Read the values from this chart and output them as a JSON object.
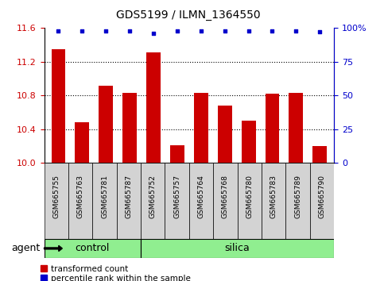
{
  "title": "GDS5199 / ILMN_1364550",
  "samples": [
    "GSM665755",
    "GSM665763",
    "GSM665781",
    "GSM665787",
    "GSM665752",
    "GSM665757",
    "GSM665764",
    "GSM665768",
    "GSM665780",
    "GSM665783",
    "GSM665789",
    "GSM665790"
  ],
  "transformed_counts": [
    11.35,
    10.48,
    10.92,
    10.83,
    11.31,
    10.21,
    10.83,
    10.68,
    10.5,
    10.82,
    10.83,
    10.2
  ],
  "percentile_ranks": [
    98,
    98,
    98,
    98,
    96,
    98,
    98,
    98,
    98,
    98,
    98,
    97
  ],
  "bar_color": "#cc0000",
  "dot_color": "#0000cc",
  "ylim_left": [
    10.0,
    11.6
  ],
  "ylim_right": [
    0,
    100
  ],
  "yticks_left": [
    10.0,
    10.4,
    10.8,
    11.2,
    11.6
  ],
  "yticks_right": [
    0,
    25,
    50,
    75,
    100
  ],
  "ytick_labels_right": [
    "0",
    "25",
    "50",
    "75",
    "100%"
  ],
  "grid_lines": [
    10.4,
    10.8,
    11.2
  ],
  "control_samples": 4,
  "control_label": "control",
  "silica_label": "silica",
  "agent_label": "agent",
  "legend_bar_label": "transformed count",
  "legend_dot_label": "percentile rank within the sample",
  "group_bg_light": "#d3d3d3",
  "group_bg_green": "#90ee90",
  "bar_width": 0.6
}
